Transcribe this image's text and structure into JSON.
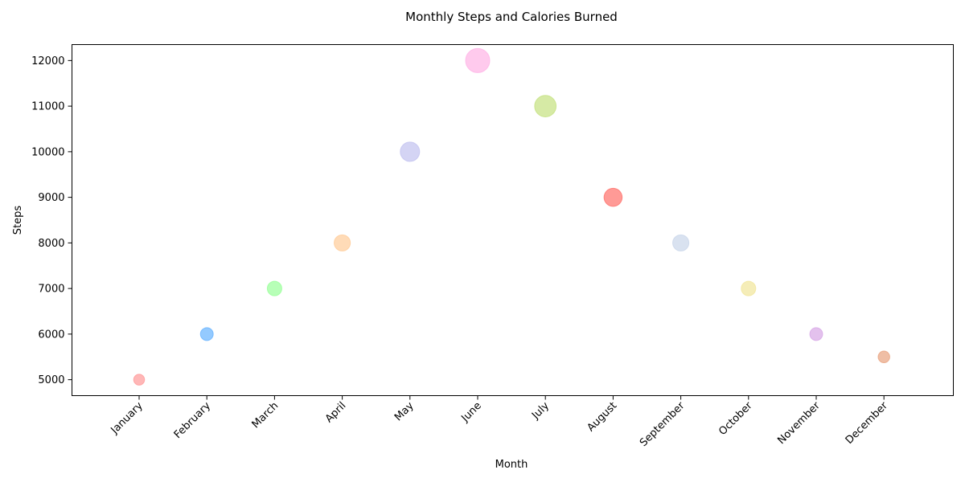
{
  "chart_data": {
    "type": "scatter",
    "title": "Monthly Steps and Calories Burned",
    "xlabel": "Month",
    "ylabel": "Steps",
    "categories": [
      "January",
      "February",
      "March",
      "April",
      "May",
      "June",
      "July",
      "August",
      "September",
      "October",
      "November",
      "December"
    ],
    "values": [
      5000,
      6000,
      7000,
      8000,
      10000,
      12000,
      11000,
      9000,
      8000,
      7000,
      6000,
      5500
    ],
    "ylim": [
      4650,
      12350
    ],
    "yticks": [
      5000,
      6000,
      7000,
      8000,
      9000,
      10000,
      11000,
      12000
    ],
    "bubble_size_relative": [
      0.45,
      0.53,
      0.6,
      0.67,
      0.8,
      1.0,
      0.89,
      0.75,
      0.67,
      0.6,
      0.53,
      0.48
    ],
    "colors": [
      "#ff9999",
      "#66b3ff",
      "#99ff99",
      "#ffcc99",
      "#c2c2f0",
      "#ffb3e6",
      "#c4e17f",
      "#ff6f69",
      "#c9d6ea",
      "#f1e69a",
      "#d7a6e6",
      "#e8a27f"
    ],
    "grid": false,
    "legend": "none"
  }
}
